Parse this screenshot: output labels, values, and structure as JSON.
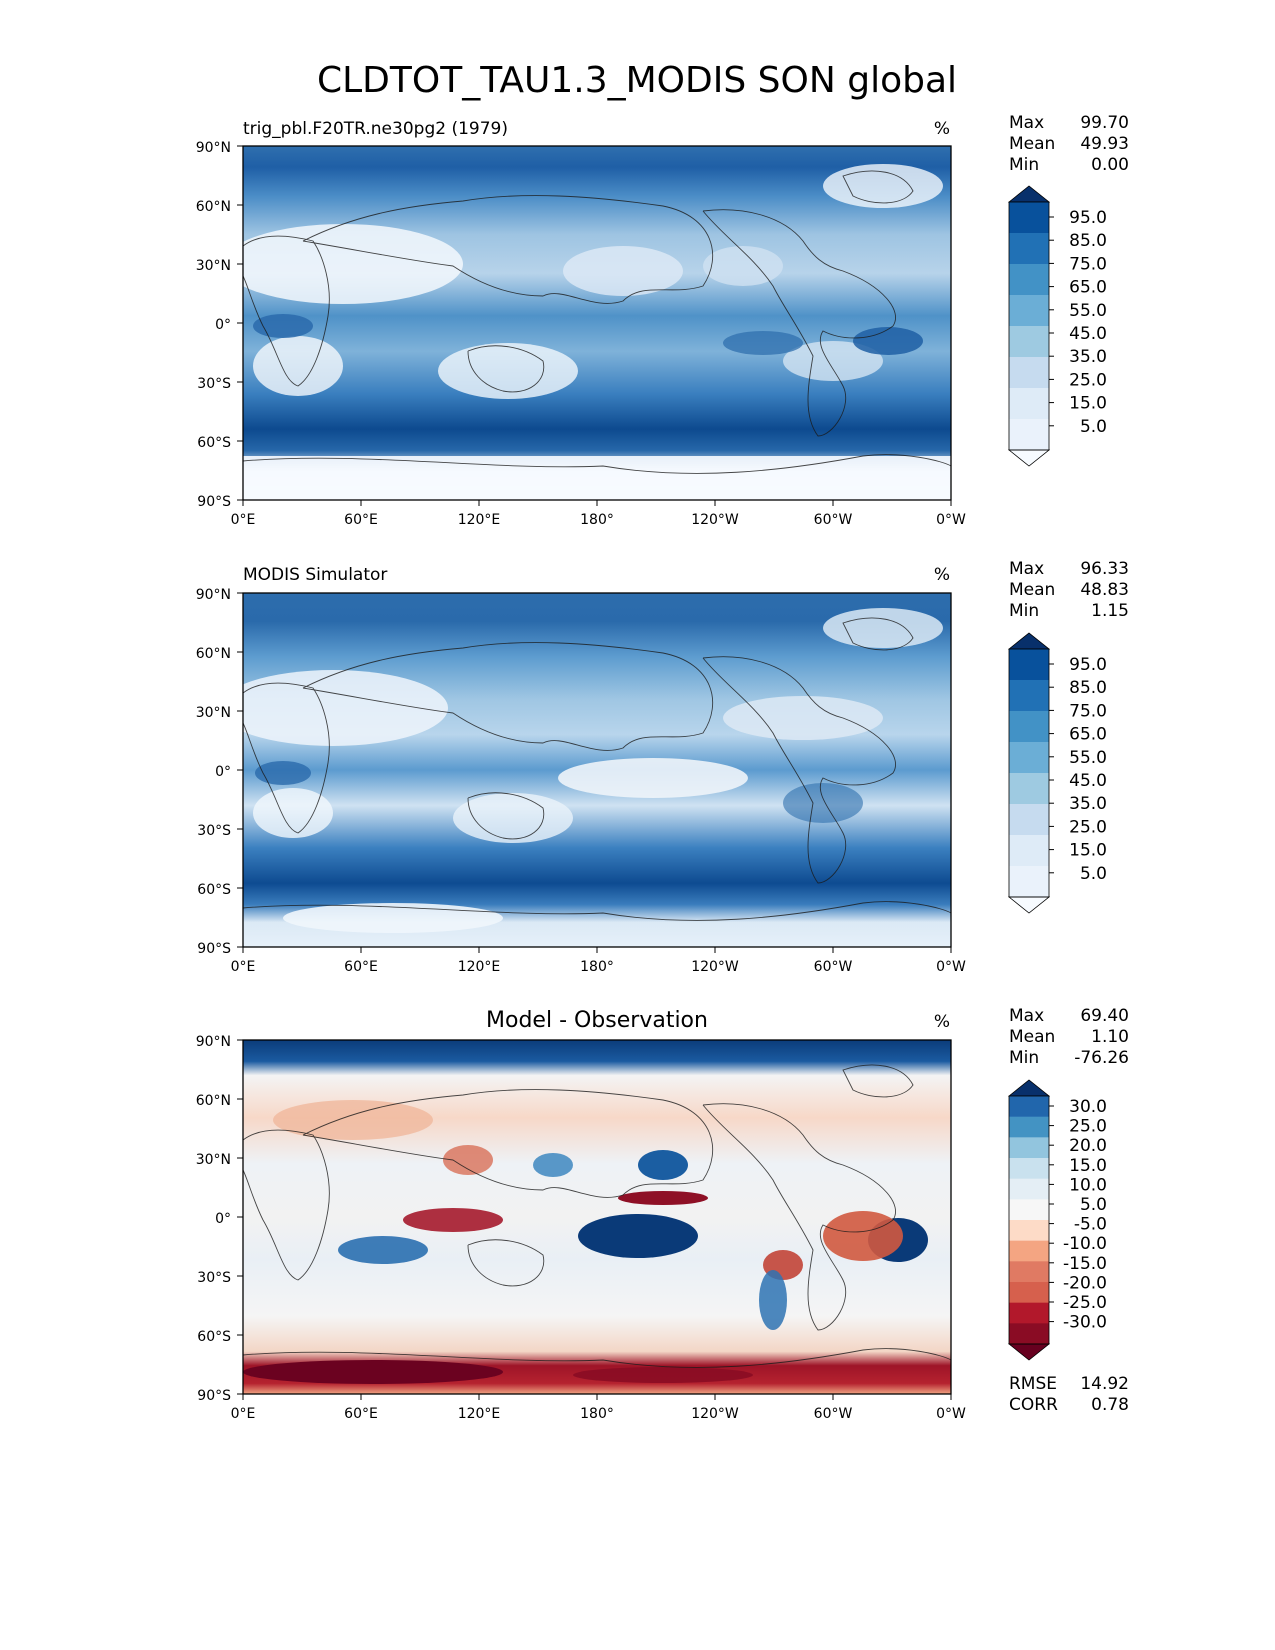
{
  "figure": {
    "title": "CLDTOT_TAU1.3_MODIS SON global",
    "unit": "%"
  },
  "labels": {
    "max": "Max",
    "mean": "Mean",
    "min": "Min",
    "rmse": "RMSE",
    "corr": "CORR"
  },
  "chart_data": [
    {
      "type": "heatmap",
      "title": "trig_pbl.F20TR.ne30pg2 (1979)",
      "units": "%",
      "stats": {
        "max": "99.70",
        "mean": "49.93",
        "min": "0.00"
      },
      "x_ticks": [
        "0°E",
        "60°E",
        "120°E",
        "180°",
        "120°W",
        "60°W",
        "0°W"
      ],
      "y_ticks": [
        "90°N",
        "60°N",
        "30°N",
        "0°",
        "30°S",
        "60°S",
        "90°S"
      ],
      "xlim": [
        0,
        360
      ],
      "ylim": [
        -90,
        90
      ],
      "colorbar": {
        "levels": [
          "95.0",
          "85.0",
          "75.0",
          "65.0",
          "55.0",
          "45.0",
          "35.0",
          "25.0",
          "15.0",
          "5.0"
        ],
        "colors": [
          "#08306b",
          "#08519c",
          "#2171b5",
          "#4292c6",
          "#6baed6",
          "#9ecae1",
          "#c6dbef",
          "#deebf7",
          "#eaf2fb",
          "#f7fbff"
        ],
        "extend": "both"
      }
    },
    {
      "type": "heatmap",
      "title": "MODIS Simulator",
      "units": "%",
      "stats": {
        "max": "96.33",
        "mean": "48.83",
        "min": "1.15"
      },
      "x_ticks": [
        "0°E",
        "60°E",
        "120°E",
        "180°",
        "120°W",
        "60°W",
        "0°W"
      ],
      "y_ticks": [
        "90°N",
        "60°N",
        "30°N",
        "0°",
        "30°S",
        "60°S",
        "90°S"
      ],
      "xlim": [
        0,
        360
      ],
      "ylim": [
        -90,
        90
      ],
      "colorbar": {
        "levels": [
          "95.0",
          "85.0",
          "75.0",
          "65.0",
          "55.0",
          "45.0",
          "35.0",
          "25.0",
          "15.0",
          "5.0"
        ],
        "colors": [
          "#08306b",
          "#08519c",
          "#2171b5",
          "#4292c6",
          "#6baed6",
          "#9ecae1",
          "#c6dbef",
          "#deebf7",
          "#eaf2fb",
          "#f7fbff"
        ],
        "extend": "both"
      }
    },
    {
      "type": "heatmap",
      "title": "Model - Observation",
      "units": "%",
      "stats": {
        "max": "69.40",
        "mean": "1.10",
        "min": "-76.26"
      },
      "metrics": {
        "rmse": "14.92",
        "corr": "0.78"
      },
      "x_ticks": [
        "0°E",
        "60°E",
        "120°E",
        "180°",
        "120°W",
        "60°W",
        "0°W"
      ],
      "y_ticks": [
        "90°N",
        "60°N",
        "30°N",
        "0°",
        "30°S",
        "60°S",
        "90°S"
      ],
      "xlim": [
        0,
        360
      ],
      "ylim": [
        -90,
        90
      ],
      "colorbar": {
        "levels": [
          "30.0",
          "25.0",
          "20.0",
          "15.0",
          "10.0",
          "5.0",
          "-5.0",
          "-10.0",
          "-15.0",
          "-20.0",
          "-25.0",
          "-30.0"
        ],
        "colors": [
          "#08306b",
          "#2166ac",
          "#4393c3",
          "#92c5de",
          "#c9e1ee",
          "#e4eef5",
          "#f7f7f7",
          "#fddbc7",
          "#f4a582",
          "#e07a63",
          "#d6604d",
          "#b2182b",
          "#8a0c24",
          "#67001f"
        ],
        "extend": "both"
      }
    }
  ]
}
